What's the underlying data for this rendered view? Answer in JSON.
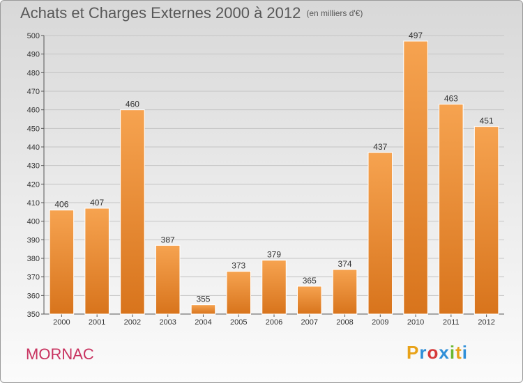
{
  "title": "Achats et Charges Externes 2000 à 2012",
  "unit_note": "(en milliers d'€)",
  "commune": "MORNAC",
  "logo": {
    "letters": [
      "P",
      "r",
      "o",
      "x",
      "i",
      "t",
      "i"
    ],
    "colors": [
      "#e8a218",
      "#2f8fd8",
      "#d63a3a",
      "#2f8fd8",
      "#6ab82f",
      "#e8a218",
      "#2f8fd8"
    ]
  },
  "colors": {
    "bar_light": "#f6a350",
    "bar_dark": "#d8741c",
    "title": "#585858",
    "commune": "#c8325f"
  },
  "chart_data": {
    "type": "bar",
    "title": "Achats et Charges Externes 2000 à 2012",
    "subtitle": "(en milliers d'€)",
    "categories": [
      "2000",
      "2001",
      "2002",
      "2003",
      "2004",
      "2005",
      "2006",
      "2007",
      "2008",
      "2009",
      "2010",
      "2011",
      "2012"
    ],
    "values": [
      406,
      407,
      460,
      387,
      355,
      373,
      379,
      365,
      374,
      437,
      497,
      463,
      451
    ],
    "ylim": [
      350,
      500
    ],
    "yticks": [
      350,
      360,
      370,
      380,
      390,
      400,
      410,
      420,
      430,
      440,
      450,
      460,
      470,
      480,
      490,
      500
    ],
    "grid": true,
    "xlabel": "",
    "ylabel": ""
  }
}
